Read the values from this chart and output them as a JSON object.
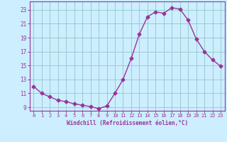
{
  "x": [
    0,
    1,
    2,
    3,
    4,
    5,
    6,
    7,
    8,
    9,
    10,
    11,
    12,
    13,
    14,
    15,
    16,
    17,
    18,
    19,
    20,
    21,
    22,
    23
  ],
  "y": [
    12.0,
    11.0,
    10.5,
    10.0,
    9.8,
    9.5,
    9.3,
    9.1,
    8.8,
    9.2,
    11.0,
    13.0,
    16.0,
    19.5,
    22.0,
    22.7,
    22.5,
    23.3,
    23.1,
    21.5,
    18.8,
    17.0,
    15.8,
    14.9
  ],
  "line_color": "#993399",
  "marker": "D",
  "marker_size": 2.5,
  "bg_color": "#cceeff",
  "grid_color": "#99cccc",
  "tick_color": "#993399",
  "label_color": "#993399",
  "xlabel": "Windchill (Refroidissement éolien,°C)",
  "xlim": [
    -0.5,
    23.5
  ],
  "ylim": [
    8.5,
    24.2
  ],
  "yticks": [
    9,
    11,
    13,
    15,
    17,
    19,
    21,
    23
  ],
  "xticks": [
    0,
    1,
    2,
    3,
    4,
    5,
    6,
    7,
    8,
    9,
    10,
    11,
    12,
    13,
    14,
    15,
    16,
    17,
    18,
    19,
    20,
    21,
    22,
    23
  ]
}
